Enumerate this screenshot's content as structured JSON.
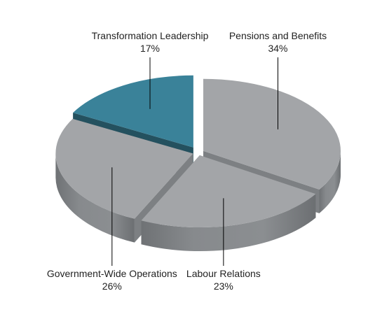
{
  "chart_data": {
    "type": "pie",
    "style": "3d-exploded",
    "title": "",
    "slices": [
      {
        "label": "Pensions and Benefits",
        "percent_label": "34%",
        "value": 34,
        "color": "#a3a5a8"
      },
      {
        "label": "Labour Relations",
        "percent_label": "23%",
        "value": 23,
        "color": "#a3a5a8"
      },
      {
        "label": "Government-Wide Operations",
        "percent_label": "26%",
        "value": 26,
        "color": "#a3a5a8"
      },
      {
        "label": "Transformation Leadership",
        "percent_label": "17%",
        "value": 17,
        "color": "#3a8299"
      }
    ],
    "legend": "none",
    "label_placement": "callout-lines"
  }
}
